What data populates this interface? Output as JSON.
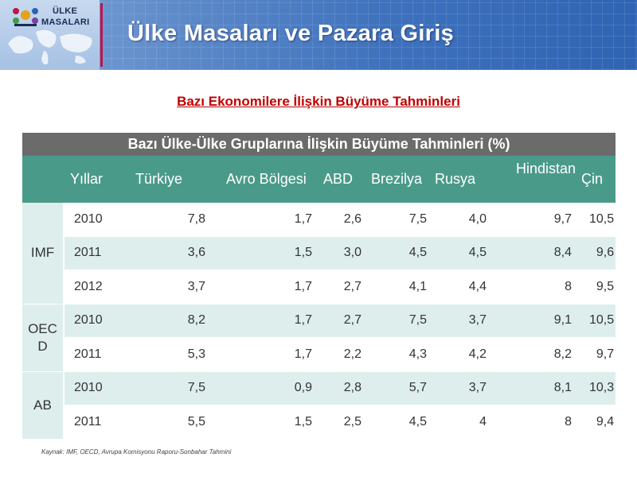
{
  "header": {
    "logo_line1": "ÜLKE",
    "logo_line2": "MASALARI",
    "title": "Ülke Masaları ve Pazara Giriş"
  },
  "page_title": "Bazı Ekonomilere İlişkin Büyüme Tahminleri",
  "table": {
    "caption": "Bazı Ülke-Ülke Gruplarına İlişkin Büyüme Tahminleri (%)",
    "columns": [
      "Yıllar",
      "Türkiye",
      "Avro Bölgesi",
      "ABD",
      "Brezilya",
      "Rusya",
      "Hindistan",
      "Çin"
    ],
    "groups": [
      {
        "name": "IMF",
        "rows": [
          [
            "2010",
            "7,8",
            "1,7",
            "2,6",
            "7,5",
            "4,0",
            "9,7",
            "10,5"
          ],
          [
            "2011",
            "3,6",
            "1,5",
            "3,0",
            "4,5",
            "4,5",
            "8,4",
            "9,6"
          ],
          [
            "2012",
            "3,7",
            "1,7",
            "2,7",
            "4,1",
            "4,4",
            "8",
            "9,5"
          ]
        ]
      },
      {
        "name": "OEC D",
        "rows": [
          [
            "2010",
            "8,2",
            "1,7",
            "2,7",
            "7,5",
            "3,7",
            "9,1",
            "10,5"
          ],
          [
            "2011",
            "5,3",
            "1,7",
            "2,2",
            "4,3",
            "4,2",
            "8,2",
            "9,7"
          ]
        ]
      },
      {
        "name": "AB",
        "rows": [
          [
            "2010",
            "7,5",
            "0,9",
            "2,8",
            "5,7",
            "3,7",
            "8,1",
            "10,3"
          ],
          [
            "2011",
            "5,5",
            "1,5",
            "2,5",
            "4,5",
            "4",
            "8",
            "9,4"
          ]
        ]
      }
    ]
  },
  "source": "Kaynak: IMF, OECD, Avrupa Komisyonu Raporu-Sonbahar Tahmini",
  "colors": {
    "caption_bg": "#6b6b6b",
    "header_bg": "#4a9a8a",
    "row_tint": "#ddeeed",
    "title_red": "#c00000"
  }
}
